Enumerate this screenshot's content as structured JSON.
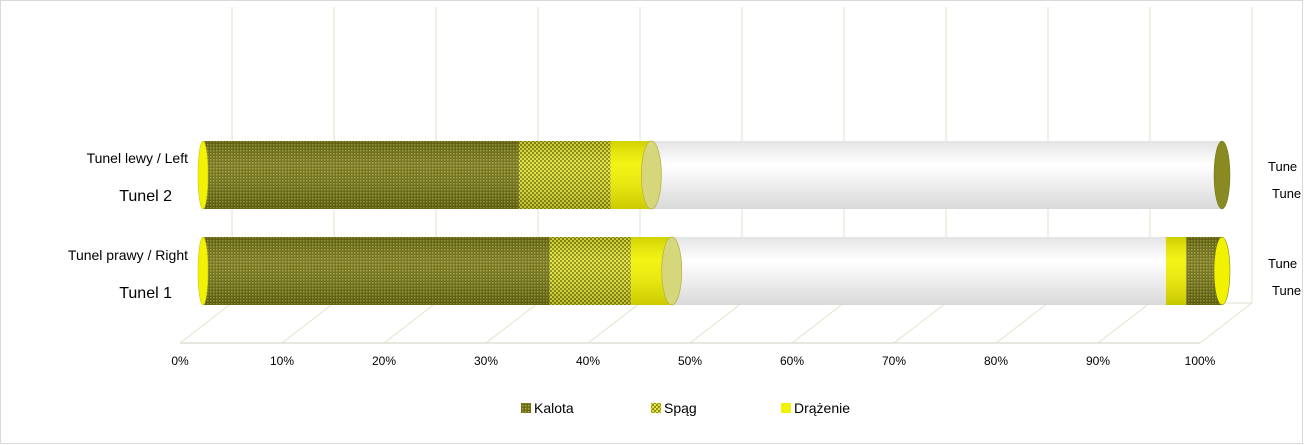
{
  "chart_data": {
    "type": "bar",
    "orientation": "horizontal",
    "stacked": "100%",
    "style": "3d-cylinder",
    "categories": [
      {
        "name": "Tunel prawy / Right",
        "sub": "Tunel 1",
        "right_name": "Tune",
        "right_sub": "Tune"
      },
      {
        "name": "Tunel lewy /  Left",
        "sub": "Tunel 2",
        "right_name": "Tune",
        "right_sub": "Tune"
      }
    ],
    "series": [
      {
        "name": "Kalota",
        "values": [
          34,
          31
        ],
        "color": "#7a7a1e",
        "pattern": "dots"
      },
      {
        "name": "Spąg",
        "values": [
          8,
          9
        ],
        "color": "#c8c826",
        "pattern": "check"
      },
      {
        "name": "Drążenie",
        "values": [
          4,
          4
        ],
        "color": "#f2f200",
        "pattern": "solid"
      }
    ],
    "back_segments": [
      [
        {
          "series": "Drążenie",
          "from": 94.5,
          "to": 96.5
        },
        {
          "series": "Kalota",
          "from": 96.5,
          "to": 100
        }
      ],
      []
    ],
    "x_ticks": [
      "0%",
      "10%",
      "20%",
      "30%",
      "40%",
      "50%",
      "60%",
      "70%",
      "80%",
      "90%",
      "100%"
    ],
    "xlim": [
      0,
      100
    ],
    "grid": true,
    "legend_position": "bottom"
  }
}
